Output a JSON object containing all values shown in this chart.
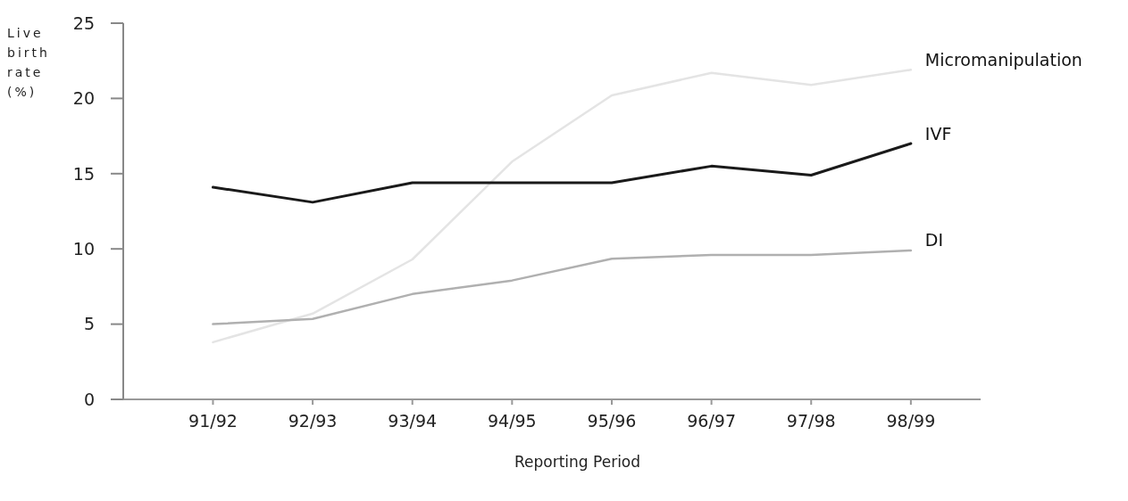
{
  "chart_data": {
    "type": "line",
    "xlabel": "Reporting Period",
    "ylabel": "Live birth rate (%)",
    "categories": [
      "91/92",
      "92/93",
      "93/94",
      "94/95",
      "95/96",
      "96/97",
      "97/98",
      "98/99"
    ],
    "series": [
      {
        "name": "Micromanipulation",
        "color": "#e4e4e4",
        "values": [
          3.8,
          5.7,
          9.3,
          15.8,
          20.2,
          21.7,
          20.9,
          21.9
        ]
      },
      {
        "name": "IVF",
        "color": "#1a1a1a",
        "values": [
          14.1,
          13.1,
          14.4,
          14.4,
          14.4,
          15.5,
          14.9,
          17.0
        ]
      },
      {
        "name": "DI",
        "color": "#b0b0b0",
        "values": [
          5.0,
          5.35,
          7.0,
          7.9,
          9.35,
          9.6,
          9.6,
          9.9
        ]
      }
    ],
    "ylim": [
      0,
      25
    ],
    "yticks": [
      0,
      5,
      10,
      15,
      20,
      25
    ],
    "grid": false,
    "marker": "none",
    "line_style": "solid"
  }
}
